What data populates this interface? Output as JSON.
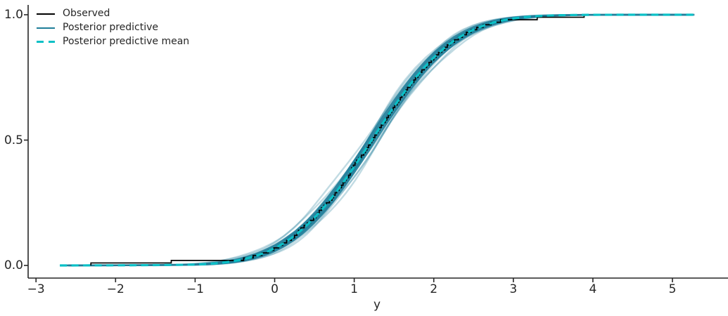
{
  "axes": {
    "spine_color": "#262626",
    "tick_color": "#262626",
    "label_color": "#262626",
    "background": "#ffffff"
  },
  "legend": {
    "items": [
      {
        "label": "Observed",
        "style": "solid",
        "color": "#000000"
      },
      {
        "label": "Posterior predictive",
        "style": "solid",
        "color": "#1f7e99"
      },
      {
        "label": "Posterior predictive mean",
        "style": "dashed",
        "color": "#0bc0c6"
      }
    ]
  },
  "chart_data": {
    "type": "line",
    "kind": "posterior-predictive-check-cumulative-ecdf",
    "title": "",
    "xlabel": "y",
    "ylabel": "",
    "grid": false,
    "legend_position": "upper-left",
    "xlim": [
      -3.1,
      5.7
    ],
    "ylim": [
      -0.05,
      1.04
    ],
    "x_ticks": [
      {
        "v": -3,
        "label": "−3"
      },
      {
        "v": -2,
        "label": "−2"
      },
      {
        "v": -1,
        "label": "−1"
      },
      {
        "v": 0,
        "label": "0"
      },
      {
        "v": 1,
        "label": "1"
      },
      {
        "v": 2,
        "label": "2"
      },
      {
        "v": 3,
        "label": "3"
      },
      {
        "v": 4,
        "label": "4"
      },
      {
        "v": 5,
        "label": "5"
      }
    ],
    "y_ticks": [
      {
        "v": 0.0,
        "label": "0.0"
      },
      {
        "v": 0.5,
        "label": "0.5"
      },
      {
        "v": 1.0,
        "label": "1.0"
      }
    ],
    "series": [
      {
        "name": "Observed",
        "type": "ecdf-steps",
        "color": "#000000",
        "n_samples": 100,
        "samples": [
          -2.31,
          -1.3,
          -0.39,
          -0.27,
          -0.16,
          -0.08,
          -0.01,
          0.05,
          0.1,
          0.15,
          0.21,
          0.25,
          0.28,
          0.3,
          0.33,
          0.37,
          0.41,
          0.45,
          0.49,
          0.52,
          0.54,
          0.56,
          0.59,
          0.62,
          0.65,
          0.69,
          0.72,
          0.74,
          0.76,
          0.78,
          0.81,
          0.84,
          0.86,
          0.88,
          0.9,
          0.93,
          0.95,
          0.96,
          0.97,
          0.99,
          1.01,
          1.03,
          1.06,
          1.09,
          1.12,
          1.14,
          1.16,
          1.18,
          1.2,
          1.22,
          1.24,
          1.26,
          1.28,
          1.3,
          1.32,
          1.34,
          1.36,
          1.39,
          1.41,
          1.43,
          1.45,
          1.47,
          1.49,
          1.51,
          1.54,
          1.56,
          1.58,
          1.6,
          1.63,
          1.65,
          1.67,
          1.7,
          1.72,
          1.75,
          1.77,
          1.8,
          1.82,
          1.85,
          1.88,
          1.91,
          1.94,
          1.97,
          2.0,
          2.03,
          2.06,
          2.1,
          2.14,
          2.17,
          2.21,
          2.26,
          2.31,
          2.36,
          2.41,
          2.47,
          2.54,
          2.62,
          2.72,
          2.84,
          3.3,
          3.89
        ]
      },
      {
        "name": "Posterior predictive",
        "type": "ecdf-band-with-draws",
        "color": "#1f7e99",
        "band_alpha": 0.88,
        "draw_alpha": 0.28,
        "band_half_width_coeff": 0.062,
        "x_range": [
          -2.6,
          5.27
        ],
        "draws": [
          {
            "dm": -0.1,
            "ds": 0.05,
            "ph": 0.3
          },
          {
            "dm": -0.07,
            "ds": -0.04,
            "ph": 1.1
          },
          {
            "dm": -0.055,
            "ds": 0.07,
            "ph": 2.0
          },
          {
            "dm": -0.04,
            "ds": -0.06,
            "ph": 2.9
          },
          {
            "dm": -0.03,
            "ds": 0.03,
            "ph": 3.8
          },
          {
            "dm": -0.02,
            "ds": -0.02,
            "ph": 4.7
          },
          {
            "dm": -0.01,
            "ds": 0.05,
            "ph": 5.6
          },
          {
            "dm": 0.0,
            "ds": -0.05,
            "ph": 0.7
          },
          {
            "dm": 0.01,
            "ds": 0.04,
            "ph": 1.6
          },
          {
            "dm": 0.02,
            "ds": -0.03,
            "ph": 2.5
          },
          {
            "dm": 0.03,
            "ds": 0.06,
            "ph": 3.4
          },
          {
            "dm": 0.045,
            "ds": -0.02,
            "ph": 4.3
          },
          {
            "dm": 0.06,
            "ds": 0.02,
            "ph": 5.2
          },
          {
            "dm": 0.075,
            "ds": -0.05,
            "ph": 6.1
          },
          {
            "dm": 0.09,
            "ds": 0.04,
            "ph": 0.9
          },
          {
            "dm": 0.11,
            "ds": -0.01,
            "ph": 1.9
          }
        ]
      },
      {
        "name": "Posterior predictive mean",
        "type": "dashed-line",
        "color": "#0bc0c6",
        "x_range": [
          -2.7,
          5.27
        ],
        "mu": 1.22,
        "sigma": 0.82,
        "points": [
          [
            -2.7,
            0.0
          ],
          [
            -2.4,
            0.0002
          ],
          [
            -2.1,
            0.0004
          ],
          [
            -1.8,
            0.0008
          ],
          [
            -1.5,
            0.0014
          ],
          [
            -1.25,
            0.0022
          ],
          [
            -1.0,
            0.0034
          ],
          [
            -0.875,
            0.0053
          ],
          [
            -0.75,
            0.0081
          ],
          [
            -0.625,
            0.0122
          ],
          [
            -0.5,
            0.018
          ],
          [
            -0.375,
            0.026
          ],
          [
            -0.25,
            0.0365
          ],
          [
            -0.125,
            0.0505
          ],
          [
            0.0,
            0.0684
          ],
          [
            0.125,
            0.0909
          ],
          [
            0.25,
            0.1184
          ],
          [
            0.375,
            0.1514
          ],
          [
            0.5,
            0.19
          ],
          [
            0.625,
            0.234
          ],
          [
            0.75,
            0.2833
          ],
          [
            0.875,
            0.3369
          ],
          [
            1.0,
            0.3943
          ],
          [
            1.125,
            0.4539
          ],
          [
            1.25,
            0.5146
          ],
          [
            1.375,
            0.575
          ],
          [
            1.5,
            0.6336
          ],
          [
            1.625,
            0.6893
          ],
          [
            1.75,
            0.7409
          ],
          [
            1.875,
            0.7878
          ],
          [
            2.0,
            0.8293
          ],
          [
            2.125,
            0.8652
          ],
          [
            2.25,
            0.8955
          ],
          [
            2.375,
            0.9206
          ],
          [
            2.5,
            0.9407
          ],
          [
            2.625,
            0.9566
          ],
          [
            2.75,
            0.969
          ],
          [
            2.875,
            0.9782
          ],
          [
            3.0,
            0.985
          ],
          [
            3.125,
            0.9899
          ],
          [
            3.25,
            0.9933
          ],
          [
            3.375,
            0.9957
          ],
          [
            3.5,
            0.9973
          ],
          [
            3.625,
            0.9983
          ],
          [
            3.75,
            0.999
          ],
          [
            4.0,
            0.9997
          ],
          [
            4.25,
            0.9999
          ],
          [
            4.5,
            1.0
          ],
          [
            5.0,
            1.0
          ],
          [
            5.27,
            1.0
          ]
        ]
      }
    ]
  }
}
